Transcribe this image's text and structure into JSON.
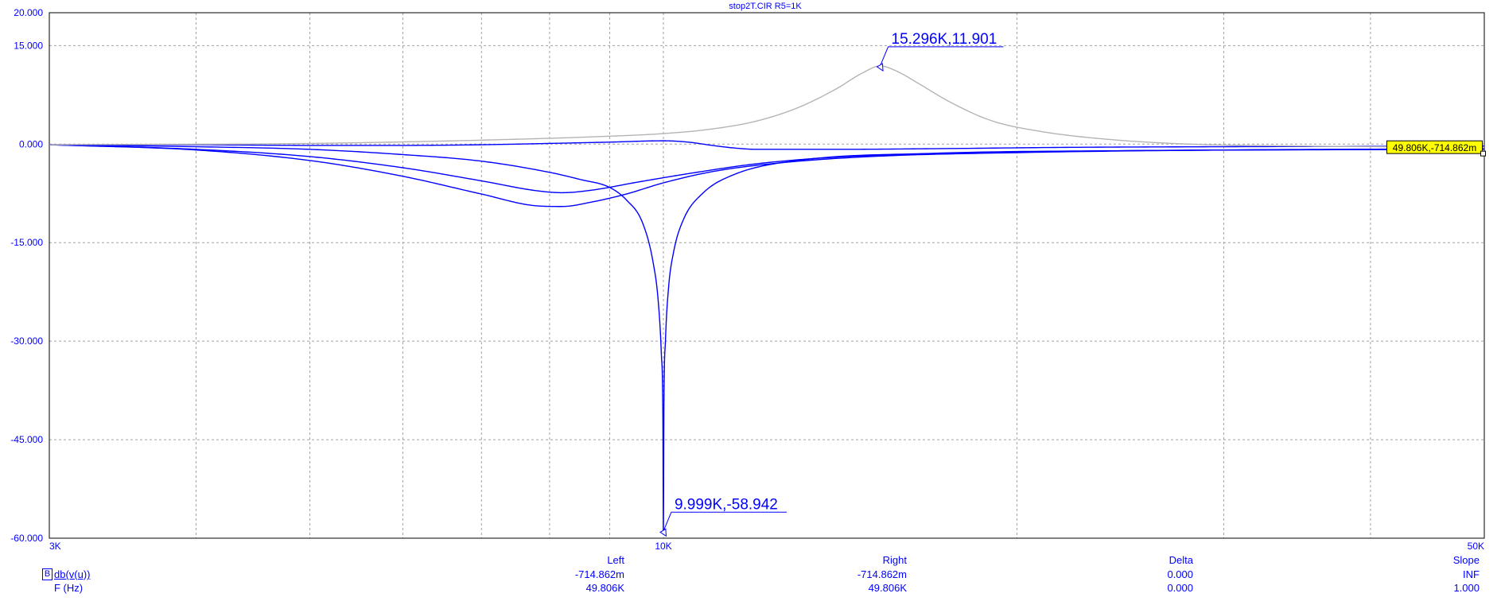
{
  "chart_data": {
    "type": "line",
    "title": "stop2T.CIR R5=1K",
    "x_scale": "log",
    "xlim": [
      3000,
      50000
    ],
    "ylim": [
      -60,
      20
    ],
    "y_ticks": [
      "20.000",
      "15.000",
      "0.000",
      "-15.000",
      "-30.000",
      "-45.000",
      "-60.000"
    ],
    "y_tick_values": [
      20,
      15,
      0,
      -15,
      -30,
      -45,
      -60
    ],
    "x_ticks": [
      "3K",
      "10K",
      "50K"
    ],
    "x_tick_values": [
      3000,
      10000,
      50000
    ],
    "x_minor_grid": [
      4000,
      5000,
      6000,
      7000,
      8000,
      9000,
      20000,
      30000,
      40000
    ],
    "grid": true,
    "colors": {
      "primary": "#0000ff",
      "gray_curve": "#b4b4b4",
      "grid": "#a0a0a0",
      "marker_bg": "#ffff00"
    },
    "series": [
      {
        "color": "#0000ff",
        "values": [
          [
            3000,
            -0.1
          ],
          [
            4000,
            -0.1
          ],
          [
            5000,
            -0.2
          ],
          [
            6000,
            -0.2
          ],
          [
            7000,
            -0.1
          ],
          [
            8000,
            0.1
          ],
          [
            9000,
            0.3
          ],
          [
            10000,
            0.5
          ],
          [
            10500,
            0.3
          ],
          [
            11000,
            -0.2
          ],
          [
            11500,
            -0.6
          ],
          [
            12000,
            -0.8
          ],
          [
            14000,
            -0.8
          ],
          [
            17000,
            -0.7
          ],
          [
            22000,
            -0.5
          ],
          [
            30000,
            -0.4
          ],
          [
            50000,
            -0.3
          ]
        ]
      },
      {
        "color": "#0000ff",
        "values": [
          [
            3000,
            -0.1
          ],
          [
            4000,
            -0.4
          ],
          [
            5000,
            -0.8
          ],
          [
            6000,
            -1.6
          ],
          [
            7000,
            -2.6
          ],
          [
            8000,
            -4.3
          ],
          [
            8500,
            -5.4
          ],
          [
            9000,
            -6.6
          ],
          [
            9300,
            -8.5
          ],
          [
            9600,
            -12
          ],
          [
            9800,
            -18
          ],
          [
            9900,
            -24
          ],
          [
            9960,
            -32
          ],
          [
            9990,
            -42
          ],
          [
            9999,
            -58.942
          ],
          [
            10010,
            -40
          ],
          [
            10040,
            -30
          ],
          [
            10100,
            -22
          ],
          [
            10200,
            -16.5
          ],
          [
            10400,
            -11.5
          ],
          [
            10800,
            -7.5
          ],
          [
            11500,
            -4.6
          ],
          [
            13000,
            -2.5
          ],
          [
            17000,
            -1.4
          ],
          [
            25000,
            -1.0
          ],
          [
            50000,
            -0.8
          ]
        ]
      },
      {
        "color": "#0000ff",
        "values": [
          [
            3000,
            -0.1
          ],
          [
            4000,
            -0.8
          ],
          [
            5000,
            -1.9
          ],
          [
            6000,
            -3.6
          ],
          [
            7000,
            -5.6
          ],
          [
            7800,
            -7.1
          ],
          [
            8200,
            -7.4
          ],
          [
            8700,
            -7.0
          ],
          [
            9500,
            -5.8
          ],
          [
            10500,
            -4.5
          ],
          [
            12000,
            -3.0
          ],
          [
            14000,
            -2.0
          ],
          [
            18000,
            -1.4
          ],
          [
            25000,
            -1.0
          ],
          [
            50000,
            -0.8
          ]
        ]
      },
      {
        "color": "#0000ff",
        "values": [
          [
            3000,
            -0.1
          ],
          [
            4000,
            -0.9
          ],
          [
            5000,
            -2.5
          ],
          [
            6000,
            -4.9
          ],
          [
            7000,
            -7.6
          ],
          [
            7800,
            -9.4
          ],
          [
            8200,
            -9.5
          ],
          [
            8700,
            -8.8
          ],
          [
            9300,
            -7.6
          ],
          [
            10000,
            -5.9
          ],
          [
            11000,
            -4.2
          ],
          [
            12500,
            -2.9
          ],
          [
            15000,
            -1.9
          ],
          [
            20000,
            -1.3
          ],
          [
            30000,
            -0.9
          ],
          [
            50000,
            -0.7148
          ]
        ]
      },
      {
        "color": "#b4b4b4",
        "values": [
          [
            3000,
            -0.1
          ],
          [
            5000,
            0.1
          ],
          [
            7000,
            0.6
          ],
          [
            9000,
            1.2
          ],
          [
            10000,
            1.6
          ],
          [
            11000,
            2.3
          ],
          [
            12000,
            3.5
          ],
          [
            13000,
            5.5
          ],
          [
            14000,
            8.3
          ],
          [
            14800,
            10.9
          ],
          [
            15296,
            11.901
          ],
          [
            15800,
            11.1
          ],
          [
            16500,
            9.2
          ],
          [
            17500,
            6.5
          ],
          [
            19000,
            3.6
          ],
          [
            21000,
            1.9
          ],
          [
            24000,
            0.7
          ],
          [
            28000,
            0.0
          ],
          [
            35000,
            -0.3
          ],
          [
            50000,
            -0.5
          ]
        ]
      }
    ],
    "annotations": [
      {
        "text": "15.296K,11.901",
        "x": 15296,
        "y": 11.901
      },
      {
        "text": "9.999K,-58.942",
        "x": 9999,
        "y": -58.942
      }
    ],
    "cursor_marker": {
      "text": "49.806K,-714.862m",
      "x": 49806,
      "y": -0.714862
    }
  },
  "readout": {
    "headers": {
      "left": "Left",
      "right": "Right",
      "delta": "Delta",
      "slope": "Slope"
    },
    "rows": [
      {
        "badge": "B",
        "label": "db(v(u))",
        "left": "-714.862m",
        "right": "-714.862m",
        "delta": "0.000",
        "slope": "INF"
      },
      {
        "label": "F (Hz)",
        "left": "49.806K",
        "right": "49.806K",
        "delta": "0.000",
        "slope": "1.000"
      }
    ]
  }
}
